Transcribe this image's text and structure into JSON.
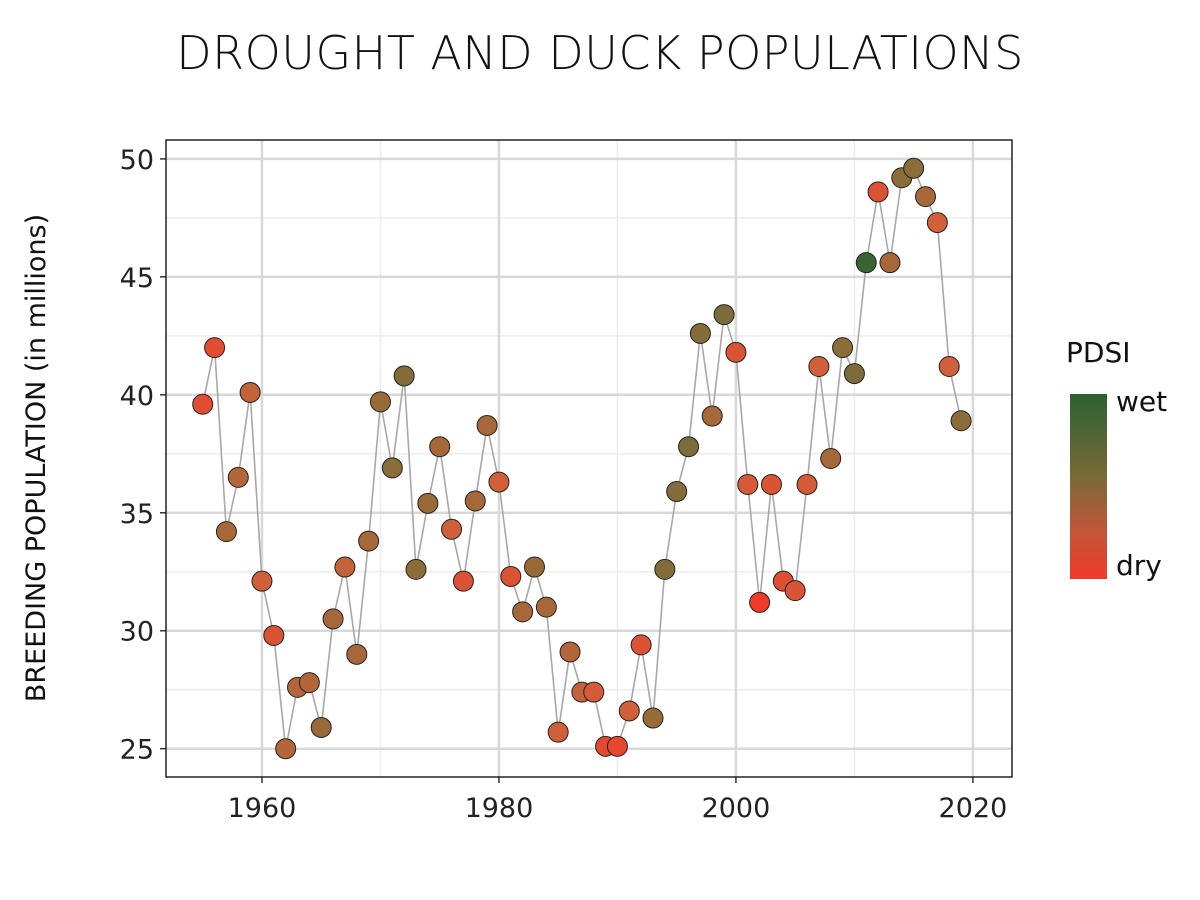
{
  "chart_data": {
    "type": "scatter",
    "title": "DROUGHT AND DUCK POPULATIONS",
    "xlabel": "",
    "ylabel": "BREEDING POPULATION (in millions)",
    "xlim": [
      1951.9,
      2023.3
    ],
    "ylim": [
      23.8,
      50.8
    ],
    "xticks": [
      1960,
      1980,
      2000,
      2020
    ],
    "yticks": [
      25,
      30,
      35,
      40,
      45,
      50
    ],
    "grid": true,
    "connected_line": true,
    "legend": {
      "title": "PDSI",
      "high_label": "wet",
      "low_label": "dry",
      "placement": "right"
    },
    "colors": {
      "wet": "#2a6230",
      "mid": "#8a6d38",
      "dry": "#f03a2a",
      "line": "#a8a8a8"
    },
    "x": [
      1955,
      1956,
      1957,
      1958,
      1959,
      1960,
      1961,
      1962,
      1963,
      1964,
      1965,
      1966,
      1967,
      1968,
      1969,
      1970,
      1971,
      1972,
      1973,
      1974,
      1975,
      1976,
      1977,
      1978,
      1979,
      1980,
      1981,
      1982,
      1983,
      1984,
      1985,
      1986,
      1987,
      1988,
      1989,
      1990,
      1991,
      1992,
      1993,
      1994,
      1995,
      1996,
      1997,
      1998,
      1999,
      2000,
      2001,
      2002,
      2003,
      2004,
      2005,
      2006,
      2007,
      2008,
      2009,
      2010,
      2011,
      2012,
      2013,
      2014,
      2015,
      2016,
      2017,
      2018,
      2019
    ],
    "y": [
      39.6,
      42.0,
      34.2,
      36.5,
      40.1,
      32.1,
      29.8,
      25.0,
      27.6,
      27.8,
      25.9,
      30.5,
      32.7,
      29.0,
      33.8,
      39.7,
      36.9,
      40.8,
      32.6,
      35.4,
      37.8,
      34.3,
      32.1,
      35.5,
      38.7,
      36.3,
      32.3,
      30.8,
      32.7,
      31.0,
      25.7,
      29.1,
      27.4,
      27.4,
      25.1,
      25.1,
      26.6,
      29.4,
      26.3,
      32.6,
      35.9,
      37.8,
      42.6,
      39.1,
      43.4,
      41.8,
      36.2,
      31.2,
      36.2,
      32.1,
      31.7,
      36.2,
      41.2,
      37.3,
      42.0,
      40.9,
      45.6,
      48.6,
      45.6,
      49.2,
      49.6,
      48.4,
      47.3,
      41.2,
      38.9
    ],
    "pdsi_wetness": [
      0.15,
      0.15,
      0.45,
      0.4,
      0.35,
      0.3,
      0.2,
      0.4,
      0.4,
      0.4,
      0.5,
      0.45,
      0.35,
      0.45,
      0.45,
      0.5,
      0.55,
      0.6,
      0.55,
      0.5,
      0.45,
      0.3,
      0.2,
      0.45,
      0.45,
      0.3,
      0.2,
      0.45,
      0.5,
      0.45,
      0.3,
      0.4,
      0.35,
      0.25,
      0.1,
      0.1,
      0.3,
      0.2,
      0.5,
      0.6,
      0.6,
      0.65,
      0.6,
      0.45,
      0.65,
      0.2,
      0.25,
      0.0,
      0.2,
      0.15,
      0.2,
      0.25,
      0.3,
      0.45,
      0.55,
      0.65,
      0.95,
      0.2,
      0.45,
      0.55,
      0.55,
      0.45,
      0.3,
      0.3,
      0.55
    ]
  }
}
